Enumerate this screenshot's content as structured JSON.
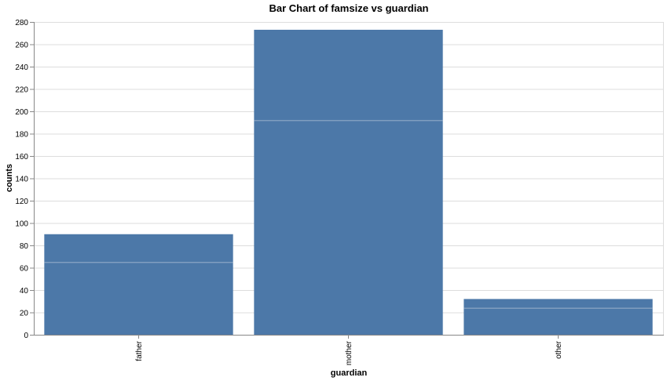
{
  "chart_data": {
    "type": "bar",
    "stacked": true,
    "title": "Bar Chart of famsize vs guardian",
    "xlabel": "guardian",
    "ylabel": "counts",
    "categories": [
      "father",
      "mother",
      "other"
    ],
    "series": [
      {
        "values": [
          65,
          192,
          24
        ]
      },
      {
        "values": [
          25,
          81,
          8
        ]
      }
    ],
    "totals": [
      90,
      273,
      32
    ],
    "ylim": [
      0,
      280
    ],
    "yticks": [
      0,
      20,
      40,
      60,
      80,
      100,
      120,
      140,
      160,
      180,
      200,
      220,
      240,
      260,
      280
    ],
    "grid": true,
    "legend": "none",
    "colors": {
      "bar": "#4c78a8",
      "segment_line": "#8fa8c6",
      "grid": "#dddddd",
      "axis": "#888888"
    }
  }
}
